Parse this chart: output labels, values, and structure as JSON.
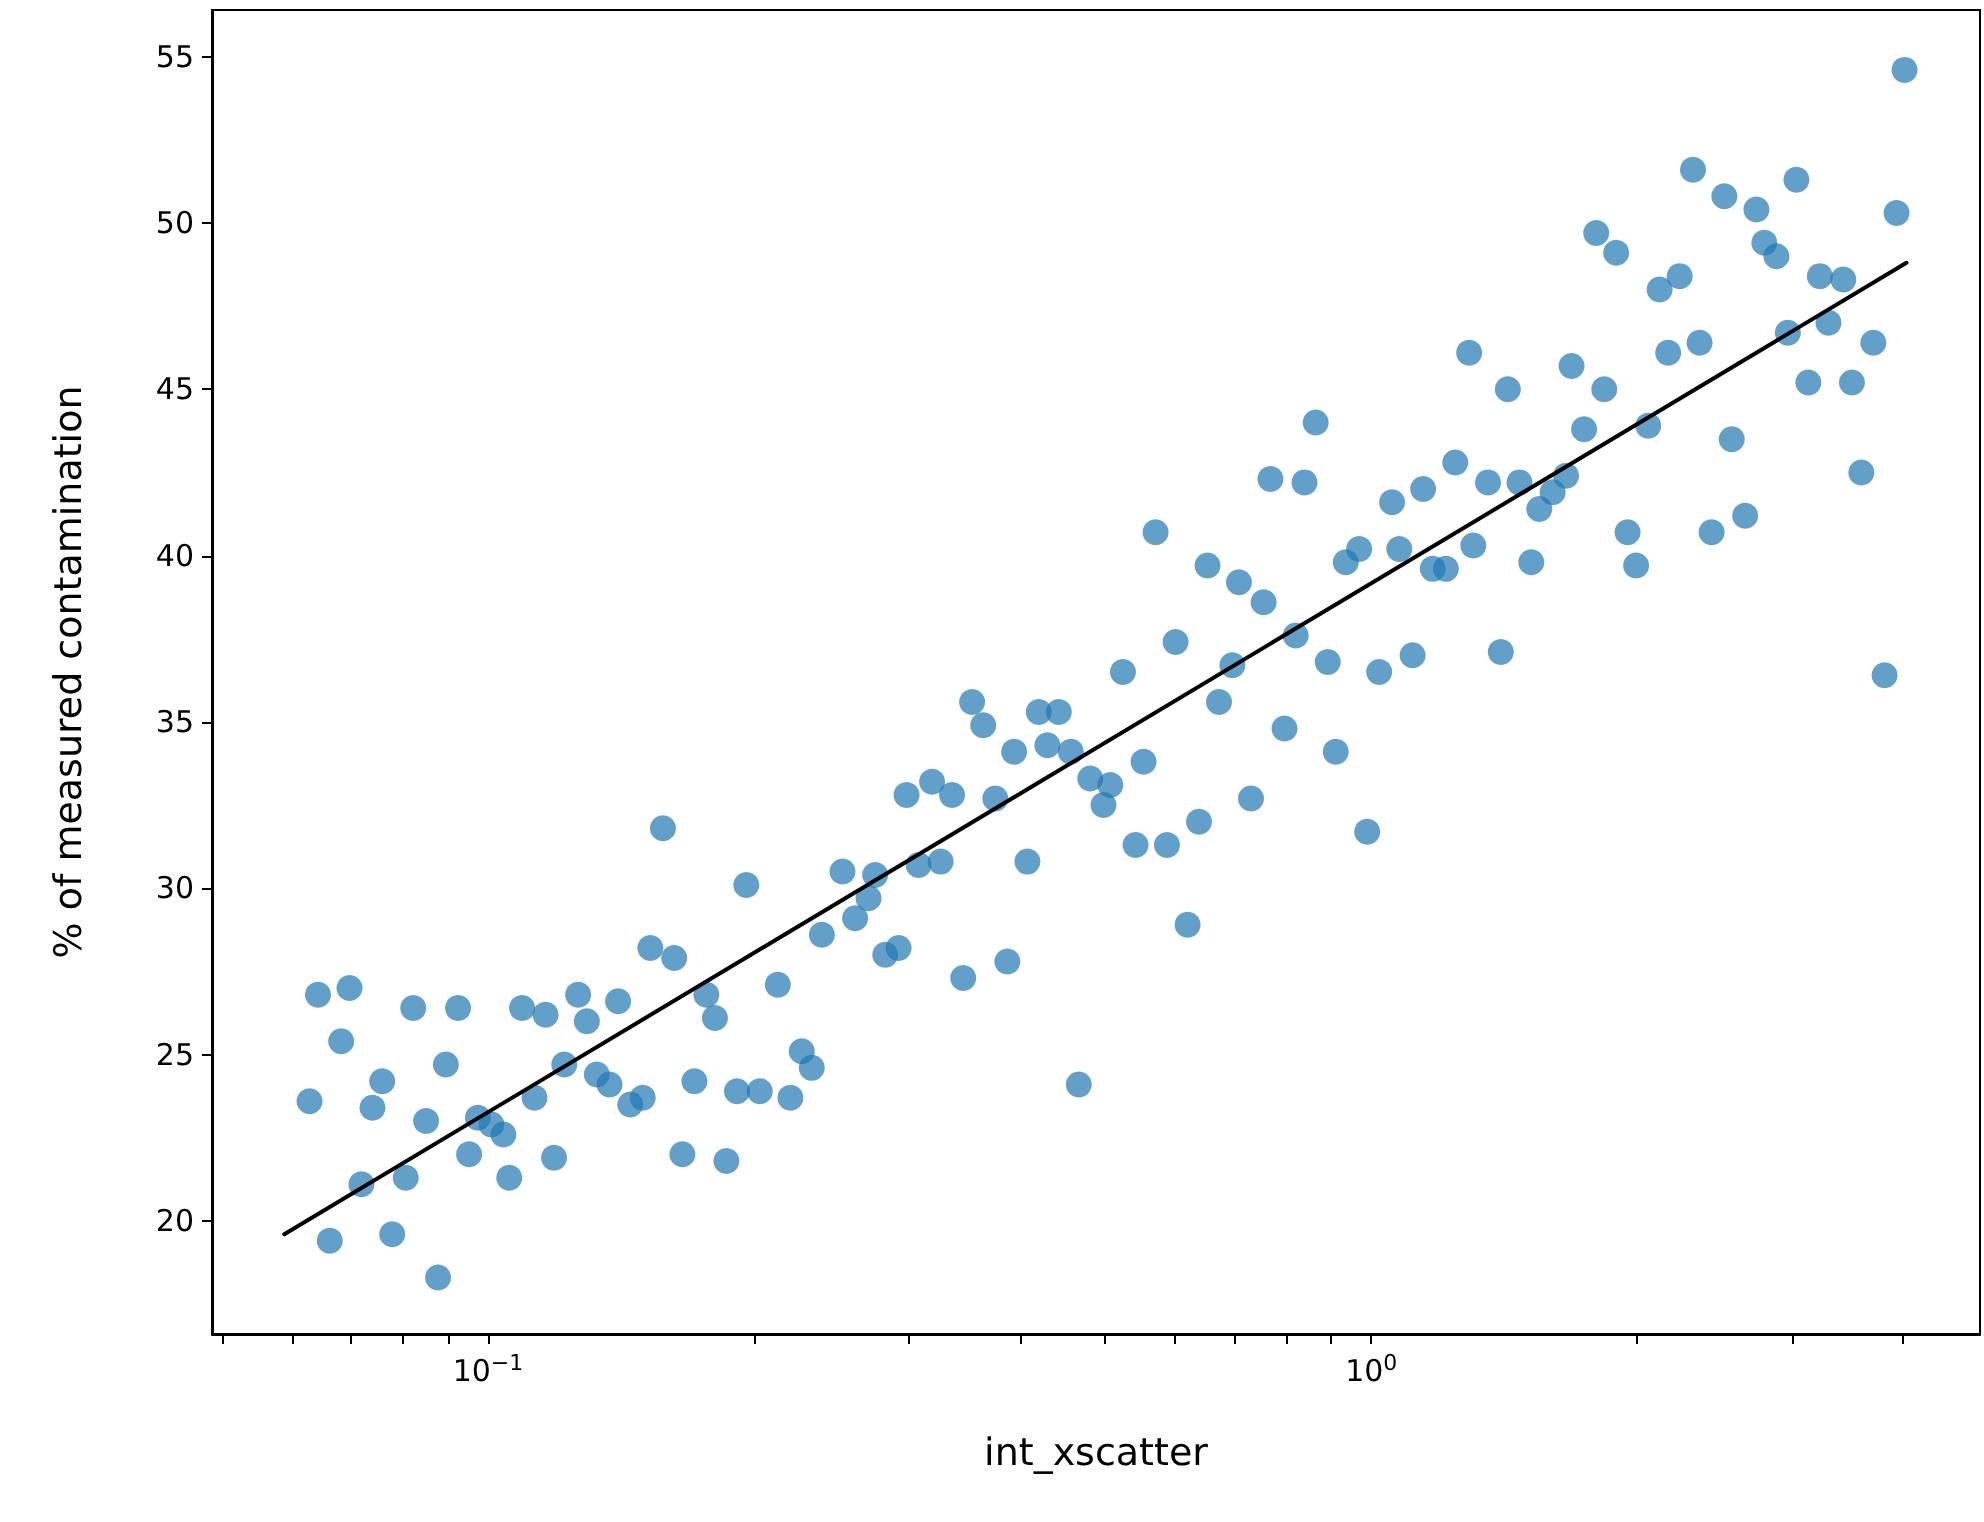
{
  "chart_data": {
    "type": "scatter",
    "xlabel": "int_xscatter",
    "ylabel": "% of measured contamination",
    "log": "x",
    "grid": false,
    "xlim": [
      0.0487,
      4.89
    ],
    "ylim": [
      16.6,
      56.4
    ],
    "xticks": [
      {
        "value": 0.05,
        "label": null
      },
      {
        "value": 0.06,
        "label": null
      },
      {
        "value": 0.07,
        "label": null
      },
      {
        "value": 0.08,
        "label": null
      },
      {
        "value": 0.09,
        "label": null
      },
      {
        "value": 0.1,
        "label": "10$^{−1}$"
      },
      {
        "value": 0.2,
        "label": null
      },
      {
        "value": 0.3,
        "label": null
      },
      {
        "value": 0.4,
        "label": null
      },
      {
        "value": 0.5,
        "label": null
      },
      {
        "value": 0.6,
        "label": null
      },
      {
        "value": 0.7,
        "label": null
      },
      {
        "value": 0.8,
        "label": null
      },
      {
        "value": 0.9,
        "label": null
      },
      {
        "value": 1,
        "label": "10$^{0}$"
      },
      {
        "value": 2,
        "label": null
      },
      {
        "value": 3,
        "label": null
      },
      {
        "value": 4,
        "label": null
      }
    ],
    "yticks": [
      20,
      25,
      30,
      35,
      40,
      45,
      50,
      55
    ],
    "series": [
      {
        "color": "#1f77b4",
        "marker": "circle",
        "x": [
          0.0628,
          0.0642,
          0.0662,
          0.0682,
          0.0697,
          0.0719,
          0.074,
          0.0759,
          0.0779,
          0.0807,
          0.0823,
          0.0851,
          0.0878,
          0.0896,
          0.0925,
          0.0952,
          0.0974,
          0.1009,
          0.1041,
          0.1057,
          0.1093,
          0.1129,
          0.1162,
          0.1188,
          0.122,
          0.1265,
          0.1294,
          0.1328,
          0.1373,
          0.1404,
          0.1449,
          0.1497,
          0.1527,
          0.1578,
          0.1625,
          0.166,
          0.1713,
          0.1767,
          0.1807,
          0.1862,
          0.1914,
          0.1961,
          0.2031,
          0.2129,
          0.22,
          0.2266,
          0.2326,
          0.2388,
          0.252,
          0.2604,
          0.2697,
          0.2744,
          0.2817,
          0.2917,
          0.2978,
          0.3073,
          0.3183,
          0.3255,
          0.3353,
          0.3452,
          0.3533,
          0.3637,
          0.3753,
          0.3873,
          0.3942,
          0.4081,
          0.4204,
          0.4299,
          0.4429,
          0.457,
          0.4666,
          0.4807,
          0.4976,
          0.5065,
          0.5235,
          0.541,
          0.5524,
          0.57,
          0.5872,
          0.6005,
          0.6196,
          0.6383,
          0.6527,
          0.6725,
          0.6964,
          0.7084,
          0.731,
          0.7554,
          0.769,
          0.7977,
          0.8213,
          0.8404,
          0.8653,
          0.8929,
          0.9117,
          0.9359,
          0.9691,
          0.9896,
          1.021,
          1.056,
          1.076,
          1.114,
          1.145,
          1.174,
          1.215,
          1.245,
          1.291,
          1.305,
          1.356,
          1.402,
          1.428,
          1.472,
          1.518,
          1.55,
          1.605,
          1.662,
          1.686,
          1.742,
          1.798,
          1.836,
          1.894,
          1.951,
          1.995,
          2.059,
          2.121,
          2.169,
          2.235,
          2.314,
          2.354,
          2.429,
          2.511,
          2.56,
          2.651,
          2.73,
          2.787,
          2.876,
          2.963,
          3.03,
          3.126,
          3.221,
          3.294,
          3.424,
          3.502,
          3.589,
          3.703,
          3.813,
          3.934,
          4.017
        ],
        "values": [
          23.6,
          26.8,
          19.4,
          25.4,
          27.0,
          21.1,
          23.4,
          24.2,
          19.6,
          21.3,
          26.4,
          23.0,
          18.3,
          24.7,
          26.4,
          22.0,
          23.1,
          22.9,
          22.6,
          21.3,
          26.4,
          23.7,
          26.2,
          21.9,
          24.7,
          26.8,
          26.0,
          24.4,
          24.1,
          26.6,
          23.5,
          23.7,
          28.2,
          31.8,
          27.9,
          22.0,
          24.2,
          26.8,
          26.1,
          21.8,
          23.9,
          30.1,
          23.9,
          27.1,
          23.7,
          25.1,
          24.6,
          28.6,
          30.5,
          29.1,
          29.7,
          30.4,
          28.0,
          28.2,
          32.8,
          30.7,
          33.2,
          30.8,
          32.8,
          27.3,
          35.6,
          34.9,
          32.7,
          27.8,
          34.1,
          30.8,
          35.3,
          34.3,
          35.3,
          34.1,
          24.1,
          33.3,
          32.5,
          33.1,
          36.5,
          31.3,
          33.8,
          40.7,
          31.3,
          37.4,
          28.9,
          32.0,
          39.7,
          35.6,
          36.7,
          39.2,
          32.7,
          38.6,
          42.3,
          34.8,
          37.6,
          42.2,
          44.0,
          36.8,
          34.1,
          39.8,
          40.2,
          31.7,
          36.5,
          41.6,
          40.2,
          37.0,
          42.0,
          39.6,
          39.6,
          42.8,
          46.1,
          40.3,
          42.2,
          37.1,
          45.0,
          42.2,
          39.8,
          41.4,
          41.9,
          42.4,
          45.7,
          43.8,
          49.7,
          45.0,
          49.1,
          40.7,
          39.7,
          43.9,
          48.0,
          46.1,
          48.4,
          51.6,
          46.4,
          40.7,
          50.8,
          43.5,
          41.2,
          50.4,
          49.4,
          49.0,
          46.7,
          51.3,
          45.2,
          48.4,
          47.0,
          48.3,
          45.2,
          42.5,
          46.4,
          36.4,
          50.3,
          54.6
        ]
      },
      {
        "type": "line",
        "color": "#000000",
        "marker": "none",
        "line_style": "solid",
        "x": [
          0.0588,
          4.037
        ],
        "values": [
          19.6,
          48.8
        ]
      }
    ]
  }
}
